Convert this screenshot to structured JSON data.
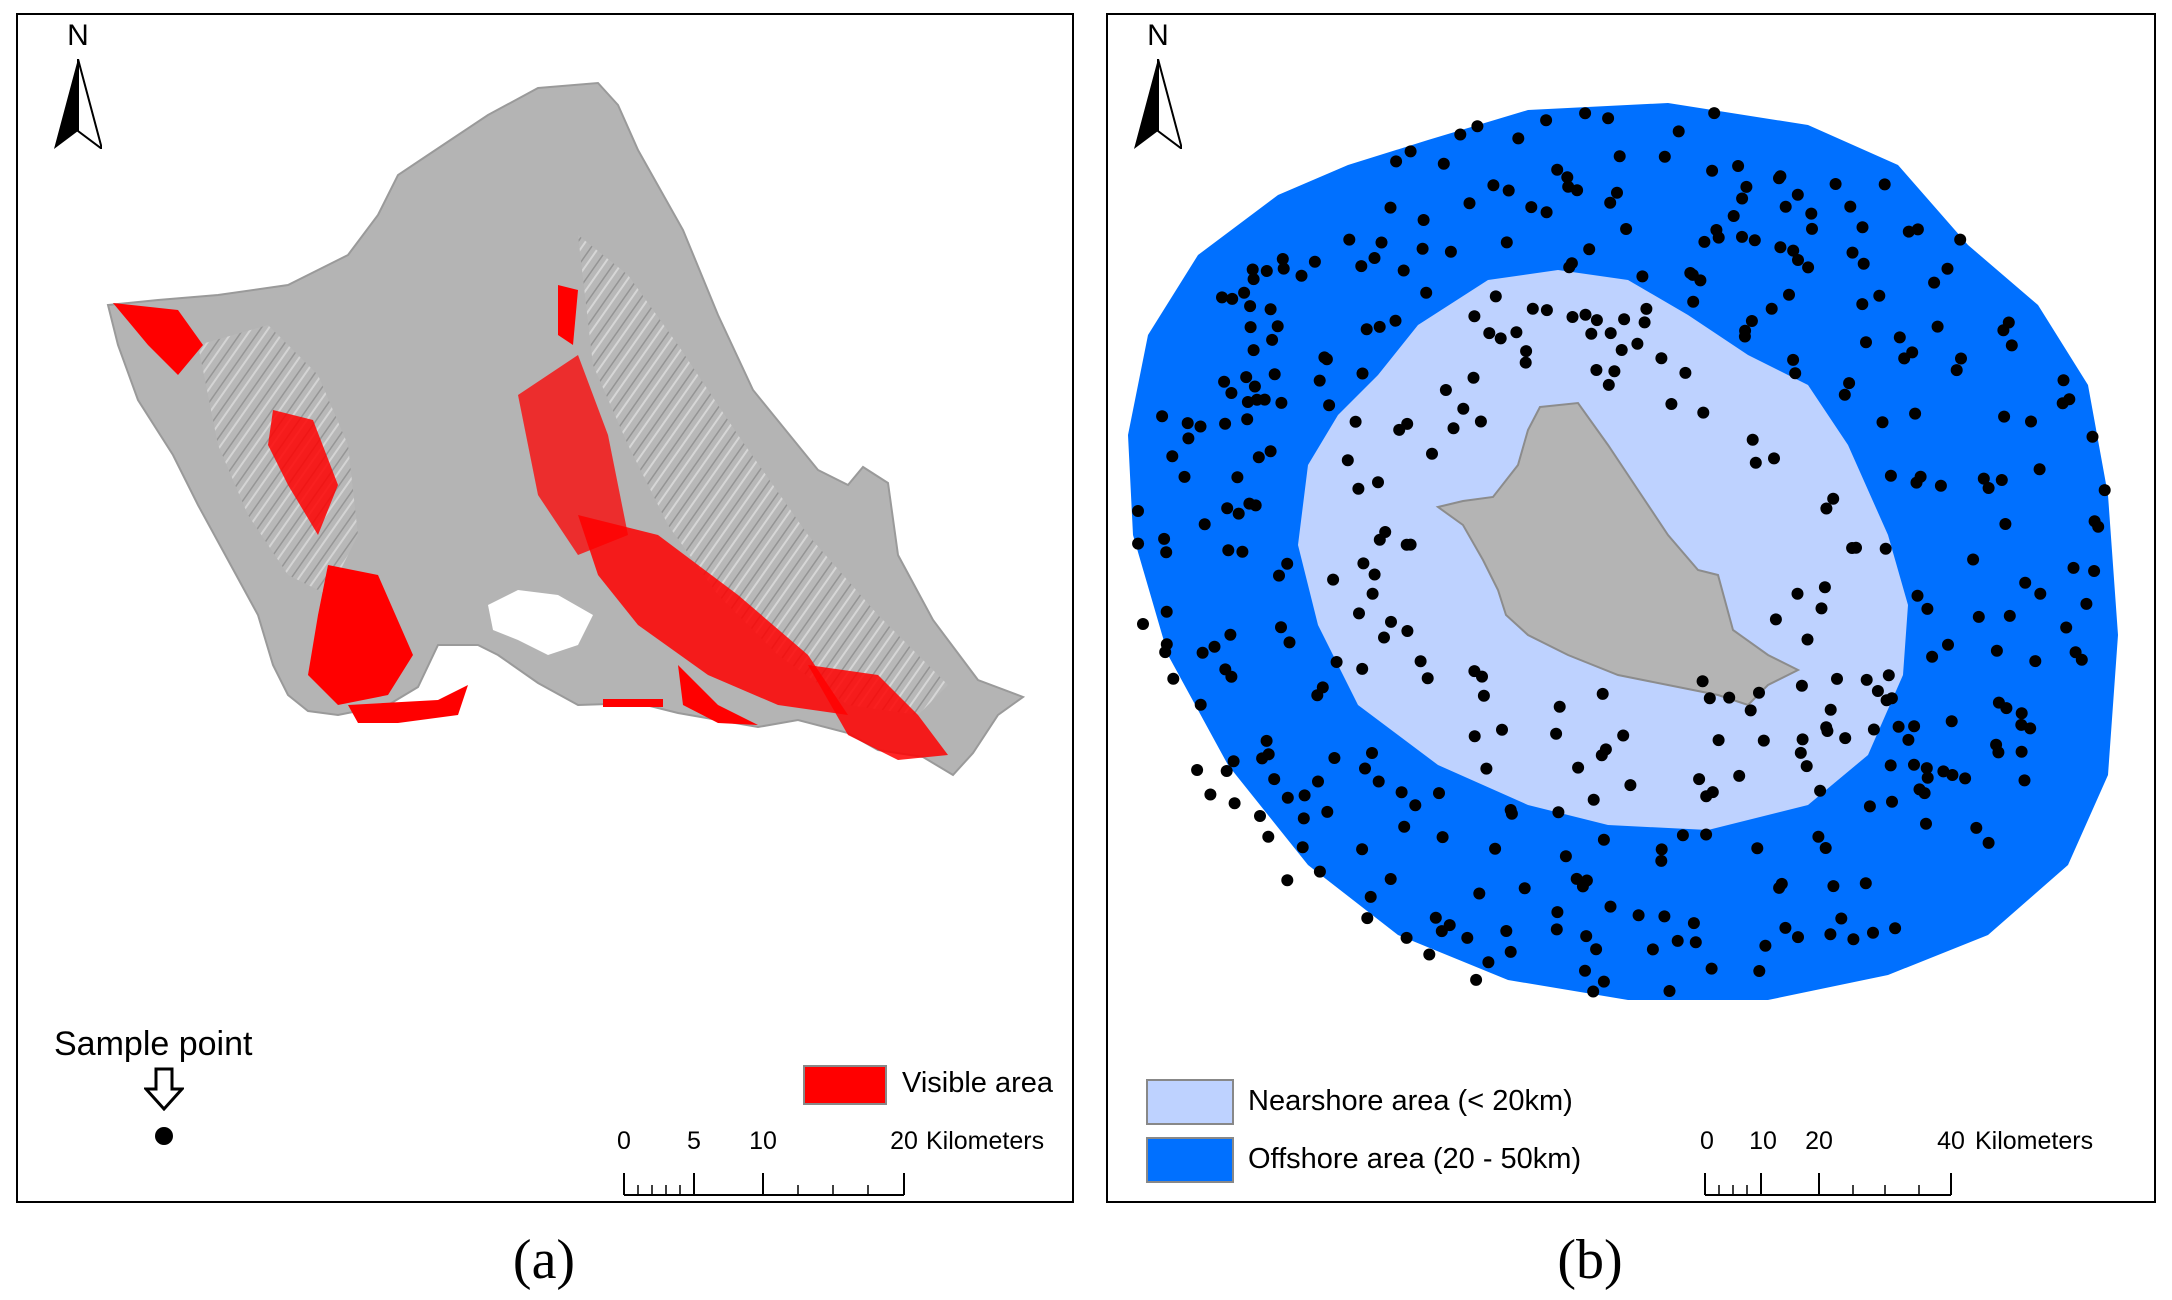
{
  "panel_a": {
    "north_label": "N",
    "sample_point_label": "Sample point",
    "legend": {
      "label": "Visible area",
      "color": "#ff0000"
    },
    "scale": {
      "ticks": [
        "0",
        "5",
        "10",
        "20"
      ],
      "unit": "Kilometers"
    },
    "caption": "(a)"
  },
  "panel_b": {
    "north_label": "N",
    "legend": [
      {
        "label": "Nearshore area (< 20km)",
        "color": "#bed2ff"
      },
      {
        "label": "Offshore area (20 - 50km)",
        "color": "#0070ff"
      }
    ],
    "scale": {
      "ticks": [
        "0",
        "10",
        "20",
        "40"
      ],
      "unit": "Kilometers"
    },
    "caption": "(b)"
  },
  "colors": {
    "land": "#b4b4b4",
    "visible": "#ff0000",
    "nearshore": "#bed2ff",
    "offshore": "#0070ff",
    "points": "#000000"
  }
}
